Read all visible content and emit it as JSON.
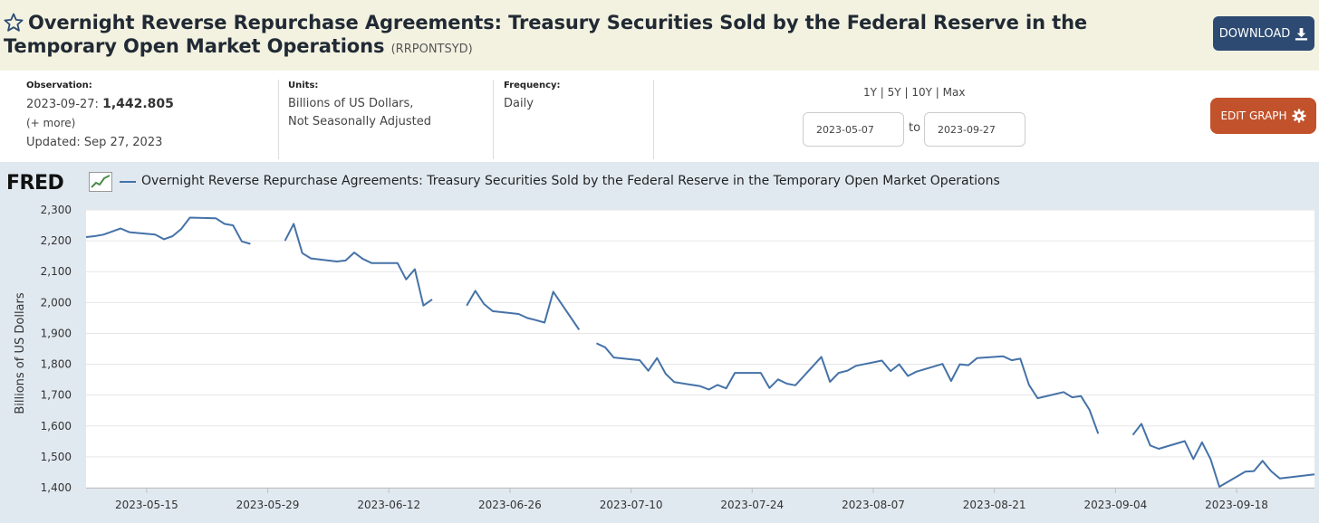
{
  "header": {
    "title": "Overnight Reverse Repurchase Agreements: Treasury Securities Sold by the Federal Reserve in the Temporary Open Market Operations",
    "series_id": "(RRPONTSYD)",
    "download_label": "DOWNLOAD"
  },
  "meta": {
    "observation_label": "Observation:",
    "observation_date": "2023-09-27:",
    "observation_value": "1,442.805",
    "more_link": "(+ more)",
    "updated": "Updated: Sep 27, 2023",
    "units_label": "Units:",
    "units_line1": "Billions of US Dollars,",
    "units_line2": "Not Seasonally Adjusted",
    "frequency_label": "Frequency:",
    "frequency_value": "Daily"
  },
  "controls": {
    "range_1y": "1Y",
    "range_5y": "5Y",
    "range_10y": "10Y",
    "range_max": "Max",
    "separator": "|",
    "start_date": "2023-05-07",
    "end_date": "2023-09-27",
    "to_label": "to",
    "edit_graph_label": "EDIT GRAPH"
  },
  "legend": {
    "logo": "FRED",
    "series_label": "Overnight Reverse Repurchase Agreements: Treasury Securities Sold by the Federal Reserve in the Temporary Open Market Operations"
  },
  "colors": {
    "series": "#4572a7",
    "download_bg": "#2d4a72",
    "edit_bg": "#c2522b",
    "title_bg": "#f3f2e1",
    "panel_bg": "#e1e9f0"
  },
  "chart_data": {
    "type": "line",
    "title": "Overnight Reverse Repurchase Agreements: Treasury Securities Sold by the Federal Reserve in the Temporary Open Market Operations",
    "xlabel": "",
    "ylabel": "Billions of US Dollars",
    "x_range": [
      "2023-05-08",
      "2023-09-27"
    ],
    "ylim": [
      1400,
      2300
    ],
    "yticks": [
      2300,
      2200,
      2100,
      2000,
      1900,
      1800,
      1700,
      1600,
      1500,
      1400
    ],
    "ytick_labels": [
      "2,300",
      "2,200",
      "2,100",
      "2,000",
      "1,900",
      "1,800",
      "1,700",
      "1,600",
      "1,500",
      "1,400"
    ],
    "xticks": [
      "2023-05-15",
      "2023-05-29",
      "2023-06-12",
      "2023-06-26",
      "2023-07-10",
      "2023-07-24",
      "2023-08-07",
      "2023-08-21",
      "2023-09-04",
      "2023-09-18"
    ],
    "grid": true,
    "series": [
      {
        "name": "RRPONTSYD",
        "segments": [
          [
            [
              "2023-05-08",
              2212
            ],
            [
              "2023-05-09",
              2215
            ],
            [
              "2023-05-10",
              2220
            ],
            [
              "2023-05-11",
              2230
            ],
            [
              "2023-05-12",
              2240
            ],
            [
              "2023-05-13",
              2228
            ],
            [
              "2023-05-16",
              2220
            ],
            [
              "2023-05-17",
              2205
            ],
            [
              "2023-05-18",
              2215
            ],
            [
              "2023-05-19",
              2238
            ],
            [
              "2023-05-20",
              2275
            ],
            [
              "2023-05-23",
              2273
            ],
            [
              "2023-05-24",
              2255
            ],
            [
              "2023-05-25",
              2250
            ],
            [
              "2023-05-26",
              2198
            ],
            [
              "2023-05-27",
              2190
            ]
          ],
          [
            [
              "2023-05-31",
              2200
            ],
            [
              "2023-06-01",
              2255
            ],
            [
              "2023-06-02",
              2160
            ],
            [
              "2023-06-03",
              2143
            ],
            [
              "2023-06-06",
              2133
            ],
            [
              "2023-06-07",
              2136
            ],
            [
              "2023-06-08",
              2162
            ],
            [
              "2023-06-09",
              2141
            ],
            [
              "2023-06-10",
              2128
            ],
            [
              "2023-06-13",
              2128
            ],
            [
              "2023-06-14",
              2075
            ],
            [
              "2023-06-15",
              2108
            ],
            [
              "2023-06-16",
              1990
            ],
            [
              "2023-06-17",
              2010
            ]
          ],
          [
            [
              "2023-06-21",
              1990
            ],
            [
              "2023-06-22",
              2038
            ],
            [
              "2023-06-23",
              1995
            ],
            [
              "2023-06-24",
              1972
            ],
            [
              "2023-06-27",
              1963
            ],
            [
              "2023-06-28",
              1950
            ],
            [
              "2023-06-29",
              1943
            ],
            [
              "2023-06-30",
              1935
            ],
            [
              "2023-07-01",
              2035
            ],
            [
              "2023-07-04",
              1912
            ]
          ],
          [
            [
              "2023-07-06",
              1868
            ],
            [
              "2023-07-07",
              1855
            ],
            [
              "2023-07-08",
              1822
            ],
            [
              "2023-07-11",
              1813
            ],
            [
              "2023-07-12",
              1779
            ],
            [
              "2023-07-13",
              1820
            ],
            [
              "2023-07-14",
              1769
            ],
            [
              "2023-07-15",
              1742
            ],
            [
              "2023-07-18",
              1729
            ],
            [
              "2023-07-19",
              1718
            ],
            [
              "2023-07-20",
              1733
            ],
            [
              "2023-07-21",
              1722
            ],
            [
              "2023-07-22",
              1772
            ],
            [
              "2023-07-25",
              1772
            ],
            [
              "2023-07-26",
              1723
            ],
            [
              "2023-07-27",
              1751
            ],
            [
              "2023-07-28",
              1737
            ],
            [
              "2023-07-29",
              1732
            ],
            [
              "2023-08-01",
              1824
            ],
            [
              "2023-08-02",
              1743
            ],
            [
              "2023-08-03",
              1772
            ],
            [
              "2023-08-04",
              1779
            ],
            [
              "2023-08-05",
              1795
            ],
            [
              "2023-08-08",
              1812
            ],
            [
              "2023-08-09",
              1778
            ],
            [
              "2023-08-10",
              1800
            ],
            [
              "2023-08-11",
              1762
            ],
            [
              "2023-08-12",
              1776
            ],
            [
              "2023-08-15",
              1801
            ],
            [
              "2023-08-16",
              1746
            ],
            [
              "2023-08-17",
              1800
            ],
            [
              "2023-08-18",
              1797
            ],
            [
              "2023-08-19",
              1820
            ],
            [
              "2023-08-22",
              1826
            ],
            [
              "2023-08-23",
              1813
            ],
            [
              "2023-08-24",
              1818
            ],
            [
              "2023-08-25",
              1733
            ],
            [
              "2023-08-26",
              1690
            ],
            [
              "2023-08-29",
              1710
            ],
            [
              "2023-08-30",
              1693
            ],
            [
              "2023-08-31",
              1697
            ],
            [
              "2023-09-01",
              1652
            ],
            [
              "2023-09-02",
              1575
            ]
          ],
          [
            [
              "2023-09-06",
              1571
            ],
            [
              "2023-09-07",
              1607
            ],
            [
              "2023-09-08",
              1537
            ],
            [
              "2023-09-09",
              1526
            ],
            [
              "2023-09-12",
              1551
            ],
            [
              "2023-09-13",
              1493
            ],
            [
              "2023-09-14",
              1547
            ],
            [
              "2023-09-15",
              1492
            ],
            [
              "2023-09-16",
              1403
            ],
            [
              "2023-09-19",
              1452
            ],
            [
              "2023-09-20",
              1454
            ],
            [
              "2023-09-21",
              1487
            ],
            [
              "2023-09-22",
              1453
            ],
            [
              "2023-09-23",
              1430
            ],
            [
              "2023-09-26",
              1440
            ],
            [
              "2023-09-27",
              1443
            ]
          ]
        ]
      }
    ]
  }
}
